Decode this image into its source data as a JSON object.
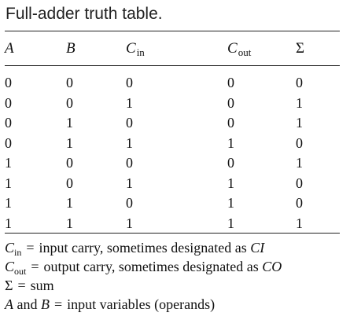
{
  "title": "Full-adder truth table.",
  "table": {
    "headers": [
      {
        "main": "A",
        "sub": ""
      },
      {
        "main": "B",
        "sub": ""
      },
      {
        "main": "C",
        "sub": "in"
      },
      {
        "main": "C",
        "sub": "out"
      },
      {
        "main": "Σ",
        "sub": ""
      }
    ],
    "rows": [
      [
        "0",
        "0",
        "0",
        "0",
        "0"
      ],
      [
        "0",
        "0",
        "1",
        "0",
        "1"
      ],
      [
        "0",
        "1",
        "0",
        "0",
        "1"
      ],
      [
        "0",
        "1",
        "1",
        "1",
        "0"
      ],
      [
        "1",
        "0",
        "0",
        "0",
        "1"
      ],
      [
        "1",
        "0",
        "1",
        "1",
        "0"
      ],
      [
        "1",
        "1",
        "0",
        "1",
        "0"
      ],
      [
        "1",
        "1",
        "1",
        "1",
        "1"
      ]
    ]
  },
  "notes": {
    "cin": {
      "sym": "C",
      "sub": "in",
      "eq": "=",
      "text": "input carry, sometimes designated as ",
      "alt": "CI"
    },
    "cout": {
      "sym": "C",
      "sub": "out",
      "eq": "=",
      "text": "output carry, sometimes designated as ",
      "alt": "CO"
    },
    "sum": {
      "sym": "Σ",
      "eq": "=",
      "text": "sum"
    },
    "ab": {
      "a": "A",
      "and": " and ",
      "b": "B",
      "eq": "=",
      "text": "input variables (operands)"
    }
  }
}
